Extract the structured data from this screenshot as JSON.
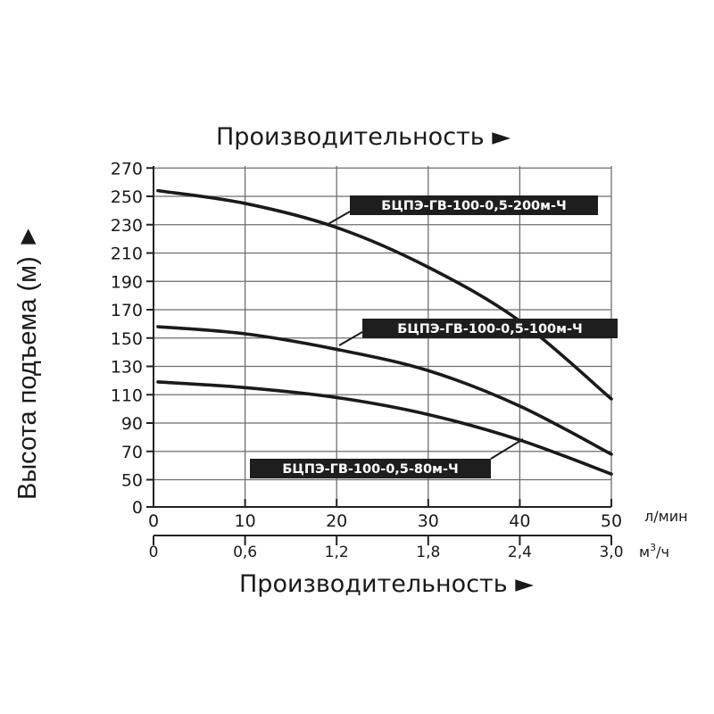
{
  "chart_data": {
    "type": "line",
    "title": "Производительность ►",
    "xlabel": "Производительность ►",
    "ylabel": "Высота подъема (м) ►",
    "x_unit": "л/мин",
    "x2_unit_base": "м",
    "x2_unit_sup": "3",
    "x2_unit_tail": "/ч",
    "xlim": [
      0,
      50
    ],
    "ylim": [
      0,
      270
    ],
    "x_ticks": [
      0,
      10,
      20,
      30,
      40,
      50
    ],
    "x_tick_labels": [
      "0",
      "10",
      "20",
      "30",
      "40",
      "50"
    ],
    "x2_ticks": [
      0,
      10,
      20,
      30,
      40,
      50
    ],
    "x2_tick_labels": [
      "0",
      "0,6",
      "1,2",
      "1,8",
      "2,4",
      "3,0"
    ],
    "y_ticks": [
      0,
      50,
      70,
      90,
      110,
      130,
      150,
      170,
      190,
      210,
      230,
      250,
      270
    ],
    "y_tick_labels": [
      "0",
      "50",
      "70",
      "90",
      "110",
      "130",
      "150",
      "170",
      "190",
      "210",
      "230",
      "250",
      "270"
    ],
    "grid": true,
    "series": [
      {
        "name": "БЦПЭ-ГВ-100-0,5-200м-Ч",
        "x": [
          0,
          10,
          20,
          30,
          40,
          50
        ],
        "y": [
          254,
          245,
          228,
          200,
          162,
          107
        ]
      },
      {
        "name": "БЦПЭ-ГВ-100-0,5-100м-Ч",
        "x": [
          0,
          10,
          20,
          30,
          40,
          50
        ],
        "y": [
          158,
          153,
          142,
          127,
          102,
          68
        ]
      },
      {
        "name": "БЦПЭ-ГВ-100-0,5-80м-Ч",
        "x": [
          0,
          10,
          20,
          30,
          40,
          50
        ],
        "y": [
          119,
          115,
          108,
          96,
          78,
          54
        ]
      }
    ]
  }
}
